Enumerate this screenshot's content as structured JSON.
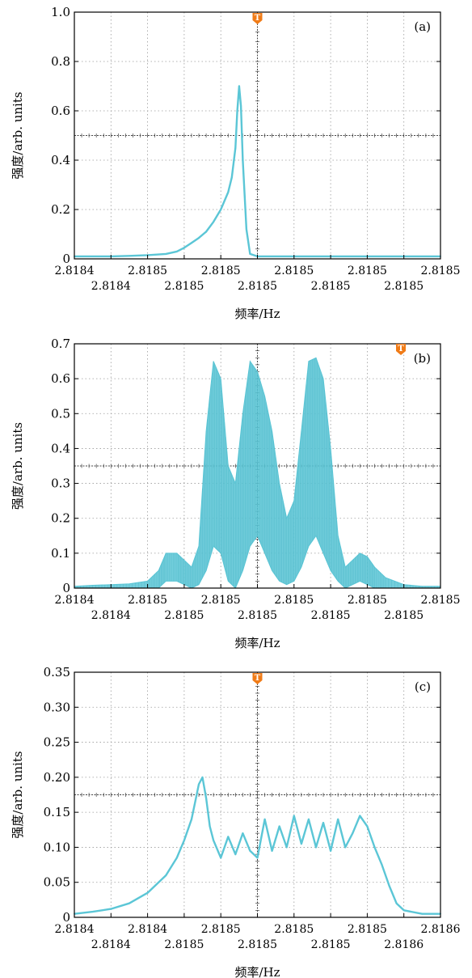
{
  "chart_data": [
    {
      "type": "line",
      "panel_label": "(a)",
      "ylabel": "强度/arb. units",
      "xlabel": "频率/Hz",
      "ylim": [
        0,
        1.0
      ],
      "yticks": [
        "0",
        "0.2",
        "0.4",
        "0.6",
        "0.8",
        "1.0"
      ],
      "xticks_top": [
        "2.8184",
        "2.8185",
        "2.8185",
        "2.8185",
        "2.8185",
        "2.8185"
      ],
      "xticks_bottom": [
        "2.8184",
        "2.8185",
        "2.8185",
        "2.8185",
        "2.8185"
      ],
      "trigger_marker": "T",
      "series_color": "#5bc6d6",
      "grid": "dotted",
      "series": [
        {
          "x": [
            0,
            0.5,
            1,
            1.5,
            2,
            2.5,
            2.8,
            3.0,
            3.2,
            3.4,
            3.6,
            3.8,
            4.0,
            4.2,
            4.3,
            4.4,
            4.45,
            4.5,
            4.55,
            4.6,
            4.7,
            4.8,
            5.0,
            6.0,
            7.0,
            8.0,
            9.0,
            10.0
          ],
          "y": [
            0.01,
            0.01,
            0.01,
            0.012,
            0.015,
            0.02,
            0.03,
            0.045,
            0.065,
            0.085,
            0.11,
            0.15,
            0.2,
            0.27,
            0.33,
            0.45,
            0.6,
            0.7,
            0.62,
            0.4,
            0.12,
            0.02,
            0.01,
            0.01,
            0.01,
            0.01,
            0.01,
            0.01
          ]
        }
      ]
    },
    {
      "type": "area",
      "panel_label": "(b)",
      "ylabel": "强度/arb. units",
      "xlabel": "频率/Hz",
      "ylim": [
        0,
        0.7
      ],
      "yticks": [
        "0",
        "0.1",
        "0.2",
        "0.3",
        "0.4",
        "0.5",
        "0.6",
        "0.7"
      ],
      "xticks_top": [
        "2.8184",
        "2.8185",
        "2.8185",
        "2.8185",
        "2.8185",
        "2.8185"
      ],
      "xticks_bottom": [
        "2.8184",
        "2.8185",
        "2.8185",
        "2.8185",
        "2.8185"
      ],
      "trigger_marker": "T",
      "series_color": "#5bc6d6",
      "grid": "dotted",
      "series": [
        {
          "x": [
            0,
            0.5,
            1,
            1.5,
            2,
            2.3,
            2.5,
            2.8,
            3.0,
            3.2,
            3.4,
            3.6,
            3.8,
            4.0,
            4.2,
            4.4,
            4.6,
            4.8,
            5.0,
            5.2,
            5.4,
            5.6,
            5.8,
            6.0,
            6.2,
            6.4,
            6.6,
            6.8,
            7.0,
            7.2,
            7.4,
            7.6,
            7.8,
            8.0,
            8.2,
            8.5,
            9.0,
            9.5,
            10.0
          ],
          "y_upper": [
            0.005,
            0.008,
            0.01,
            0.012,
            0.02,
            0.05,
            0.1,
            0.1,
            0.08,
            0.06,
            0.12,
            0.45,
            0.65,
            0.6,
            0.35,
            0.3,
            0.5,
            0.65,
            0.62,
            0.55,
            0.45,
            0.3,
            0.2,
            0.25,
            0.45,
            0.65,
            0.66,
            0.6,
            0.4,
            0.15,
            0.06,
            0.08,
            0.1,
            0.09,
            0.06,
            0.03,
            0.01,
            0.005,
            0.005
          ],
          "y_lower": [
            0.0,
            0.0,
            0.0,
            0.0,
            0.0,
            0.0,
            0.02,
            0.02,
            0.01,
            0.0,
            0.01,
            0.05,
            0.12,
            0.1,
            0.02,
            0.0,
            0.05,
            0.12,
            0.15,
            0.1,
            0.05,
            0.02,
            0.01,
            0.02,
            0.06,
            0.12,
            0.15,
            0.1,
            0.05,
            0.02,
            0.0,
            0.01,
            0.02,
            0.01,
            0.0,
            0.0,
            0.0,
            0.0,
            0.0
          ]
        }
      ]
    },
    {
      "type": "line",
      "panel_label": "(c)",
      "ylabel": "强度/arb. units",
      "xlabel": "频率/Hz",
      "ylim": [
        0,
        0.35
      ],
      "yticks": [
        "0",
        "0.05",
        "0.10",
        "0.15",
        "0.20",
        "0.25",
        "0.30",
        "0.35"
      ],
      "xticks_top": [
        "2.8184",
        "2.8184",
        "2.8185",
        "2.8185",
        "2.8185",
        "2.8186"
      ],
      "xticks_bottom": [
        "2.8184",
        "2.8185",
        "2.8185",
        "2.8185",
        "2.8186"
      ],
      "trigger_marker": "T",
      "series_color": "#5bc6d6",
      "grid": "dotted",
      "series": [
        {
          "x": [
            0,
            0.5,
            1.0,
            1.5,
            2.0,
            2.5,
            2.8,
            3.0,
            3.2,
            3.3,
            3.4,
            3.5,
            3.6,
            3.7,
            3.8,
            4.0,
            4.2,
            4.4,
            4.6,
            4.8,
            5.0,
            5.2,
            5.4,
            5.6,
            5.8,
            6.0,
            6.2,
            6.4,
            6.6,
            6.8,
            7.0,
            7.2,
            7.4,
            7.6,
            7.8,
            8.0,
            8.2,
            8.4,
            8.6,
            8.8,
            9.0,
            9.5,
            10.0
          ],
          "y": [
            0.005,
            0.008,
            0.012,
            0.02,
            0.035,
            0.06,
            0.085,
            0.11,
            0.14,
            0.165,
            0.19,
            0.2,
            0.17,
            0.13,
            0.11,
            0.085,
            0.115,
            0.09,
            0.12,
            0.095,
            0.085,
            0.14,
            0.095,
            0.13,
            0.1,
            0.145,
            0.105,
            0.14,
            0.1,
            0.135,
            0.095,
            0.14,
            0.1,
            0.12,
            0.145,
            0.13,
            0.1,
            0.075,
            0.045,
            0.02,
            0.01,
            0.005,
            0.005
          ]
        }
      ]
    }
  ]
}
